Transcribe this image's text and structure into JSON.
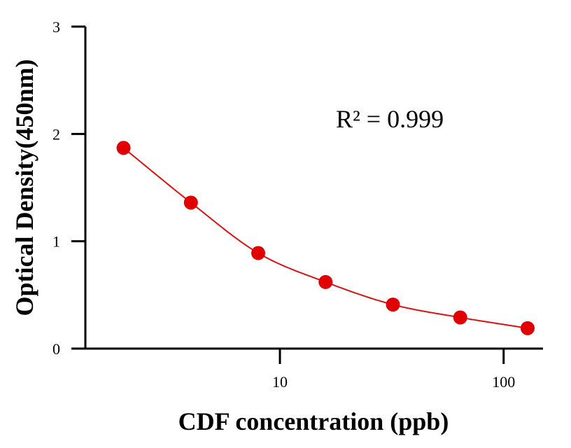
{
  "chart_data": {
    "type": "scatter",
    "title": "",
    "xlabel": "CDF concentration (ppb)",
    "ylabel": "Optical Density(450nm)",
    "xscale": "log",
    "xlim": [
      1.35,
      150
    ],
    "ylim": [
      0,
      3
    ],
    "x_ticks": [
      10,
      100
    ],
    "x_tick_labels": [
      "10",
      "100"
    ],
    "y_ticks": [
      0,
      1,
      2,
      3
    ],
    "y_tick_labels": [
      "0",
      "1",
      "2",
      "3"
    ],
    "grid": false,
    "legend": "none",
    "annotation": "R² = 0.999",
    "series": [
      {
        "x": [
          2,
          4,
          8,
          16,
          32,
          64,
          128
        ],
        "y": [
          1.87,
          1.36,
          0.89,
          0.62,
          0.41,
          0.29,
          0.19
        ],
        "fit_curve": true,
        "color": "#e00000",
        "line_color": "#dd1111"
      }
    ]
  }
}
